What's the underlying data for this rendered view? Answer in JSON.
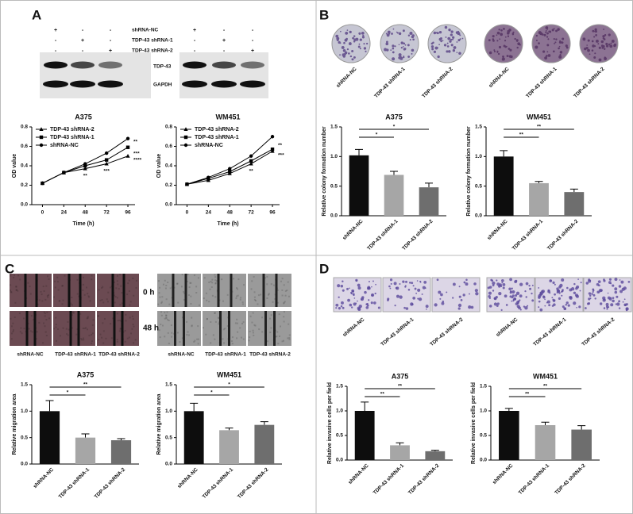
{
  "panel_labels": [
    "A",
    "B",
    "C",
    "D"
  ],
  "blot": {
    "conditions": [
      "shRNA-NC",
      "TDP-43 shRNA-1",
      "TDP-43 shRNA-2"
    ],
    "signs": [
      [
        "+",
        "-",
        "-"
      ],
      [
        "-",
        "+",
        "-"
      ],
      [
        "-",
        "-",
        "+"
      ]
    ],
    "proteins": [
      "TDP-43",
      "GAPDH"
    ]
  },
  "image_labels": [
    "shRNA-NC",
    "TDP-43 shRNA-1",
    "TDP-43 shRNA-2"
  ],
  "time_points": [
    "0 h",
    "48 h"
  ],
  "chart_data": [
    {
      "type": "line",
      "title": "A375",
      "xlabel": "Time (h)",
      "ylabel": "OD value",
      "x": [
        0,
        24,
        48,
        72,
        96
      ],
      "xlim": [
        -12,
        104
      ],
      "xticks": [
        0,
        24,
        48,
        72,
        96
      ],
      "ylim": [
        0,
        0.8
      ],
      "yticks": [
        {
          "value": 0,
          "label": "0.0"
        },
        0.2,
        0.4,
        0.6,
        0.8
      ],
      "series": [
        {
          "name": "TDP-43 shRNA-2",
          "color": "#000000",
          "marker": "triangle",
          "values": [
            0.22,
            0.33,
            0.37,
            0.42,
            0.5
          ]
        },
        {
          "name": "TDP-43 shRNA-1",
          "color": "#000000",
          "marker": "square",
          "values": [
            0.22,
            0.33,
            0.4,
            0.46,
            0.59
          ]
        },
        {
          "name": "shRNA-NC",
          "color": "#000000",
          "marker": "circle",
          "values": [
            0.22,
            0.33,
            0.42,
            0.53,
            0.68
          ]
        }
      ],
      "annotations": [
        "**",
        "***",
        "**",
        "***",
        "****"
      ]
    },
    {
      "type": "line",
      "title": "WM451",
      "xlabel": "Time (h)",
      "ylabel": "OD value",
      "x": [
        0,
        24,
        48,
        72,
        96
      ],
      "xlim": [
        -12,
        104
      ],
      "xticks": [
        0,
        24,
        48,
        72,
        96
      ],
      "ylim": [
        0,
        0.8
      ],
      "yticks": [
        {
          "value": 0,
          "label": "0.0"
        },
        0.2,
        0.4,
        0.6,
        0.8
      ],
      "series": [
        {
          "name": "TDP-43 shRNA-2",
          "color": "#000000",
          "marker": "triangle",
          "values": [
            0.21,
            0.25,
            0.32,
            0.42,
            0.55
          ]
        },
        {
          "name": "TDP-43 shRNA-1",
          "color": "#000000",
          "marker": "square",
          "values": [
            0.21,
            0.27,
            0.34,
            0.45,
            0.57
          ]
        },
        {
          "name": "shRNA-NC",
          "color": "#000000",
          "marker": "circle",
          "values": [
            0.21,
            0.28,
            0.37,
            0.5,
            0.7
          ]
        }
      ],
      "annotations": [
        "**",
        "**",
        "***"
      ]
    },
    {
      "type": "bar",
      "title": "A375",
      "ylabel": "Relative colony formation number",
      "categories": [
        "shRNA-NC",
        "TDP-43 shRNA-1",
        "TDP-43 shRNA-2"
      ],
      "values": [
        1.02,
        0.69,
        0.48
      ],
      "errors": [
        0.1,
        0.06,
        0.07
      ],
      "colors": [
        "#0d0d0d",
        "#a6a6a6",
        "#6e6e6e"
      ],
      "ylim": [
        0,
        1.5
      ],
      "yticks": [
        {
          "value": 0,
          "label": "0.0"
        },
        0.5,
        {
          "value": 1,
          "label": "1.0"
        },
        1.5
      ],
      "annotations": [
        "*",
        "*"
      ]
    },
    {
      "type": "bar",
      "title": "WM451",
      "ylabel": "Relative colony formation number",
      "categories": [
        "shRNA-NC",
        "TDP-43 shRNA-1",
        "TDP-43 shRNA-2"
      ],
      "values": [
        1.0,
        0.55,
        0.4
      ],
      "errors": [
        0.1,
        0.03,
        0.05
      ],
      "colors": [
        "#0d0d0d",
        "#a6a6a6",
        "#6e6e6e"
      ],
      "ylim": [
        0,
        1.5
      ],
      "yticks": [
        {
          "value": 0,
          "label": "0.0"
        },
        0.5,
        {
          "value": 1,
          "label": "1.0"
        },
        1.5
      ],
      "annotations": [
        "**",
        "**"
      ]
    },
    {
      "type": "bar",
      "title": "A375",
      "ylabel": "Relative migration area",
      "categories": [
        "shRNA-NC",
        "TDP-43 shRNA-1",
        "TDP-43 shRNA-2"
      ],
      "values": [
        1.0,
        0.5,
        0.45
      ],
      "errors": [
        0.2,
        0.07,
        0.03
      ],
      "colors": [
        "#0d0d0d",
        "#a6a6a6",
        "#6e6e6e"
      ],
      "ylim": [
        0,
        1.5
      ],
      "yticks": [
        {
          "value": 0,
          "label": "0.0"
        },
        0.5,
        {
          "value": 1,
          "label": "1.0"
        },
        1.5
      ],
      "annotations": [
        "*",
        "**"
      ]
    },
    {
      "type": "bar",
      "title": "WM451",
      "ylabel": "Relative migration area",
      "categories": [
        "shRNA-NC",
        "TDP-43 shRNA-1",
        "TDP-43 shRNA-2"
      ],
      "values": [
        1.0,
        0.64,
        0.74
      ],
      "errors": [
        0.15,
        0.04,
        0.06
      ],
      "colors": [
        "#0d0d0d",
        "#a6a6a6",
        "#6e6e6e"
      ],
      "ylim": [
        0,
        1.5
      ],
      "yticks": [
        {
          "value": 0,
          "label": "0.0"
        },
        0.5,
        {
          "value": 1,
          "label": "1.0"
        },
        1.5
      ],
      "annotations": [
        "*",
        "*"
      ]
    },
    {
      "type": "bar",
      "title": "A375",
      "ylabel": "Relative invasive cells per field",
      "categories": [
        "shRNA-NC",
        "TDP-43 shRNA-1",
        "TDP-43 shRNA-2"
      ],
      "values": [
        1.0,
        0.3,
        0.18
      ],
      "errors": [
        0.18,
        0.05,
        0.02
      ],
      "colors": [
        "#0d0d0d",
        "#a6a6a6",
        "#6e6e6e"
      ],
      "ylim": [
        0,
        1.5
      ],
      "yticks": [
        {
          "value": 0,
          "label": "0.0"
        },
        0.5,
        {
          "value": 1,
          "label": "1.0"
        },
        1.5
      ],
      "annotations": [
        "**",
        "**"
      ]
    },
    {
      "type": "bar",
      "title": "WM451",
      "ylabel": "Relative invasive cells per field",
      "categories": [
        "shRNA-NC",
        "TDP-43 shRNA-1",
        "TDP-43 shRNA-2"
      ],
      "values": [
        1.0,
        0.71,
        0.62
      ],
      "errors": [
        0.05,
        0.06,
        0.08
      ],
      "colors": [
        "#0d0d0d",
        "#a6a6a6",
        "#6e6e6e"
      ],
      "ylim": [
        0,
        1.5
      ],
      "yticks": [
        {
          "value": 0,
          "label": "0.0"
        },
        0.5,
        {
          "value": 1,
          "label": "1.0"
        },
        1.5
      ],
      "annotations": [
        "**",
        "**"
      ]
    }
  ]
}
